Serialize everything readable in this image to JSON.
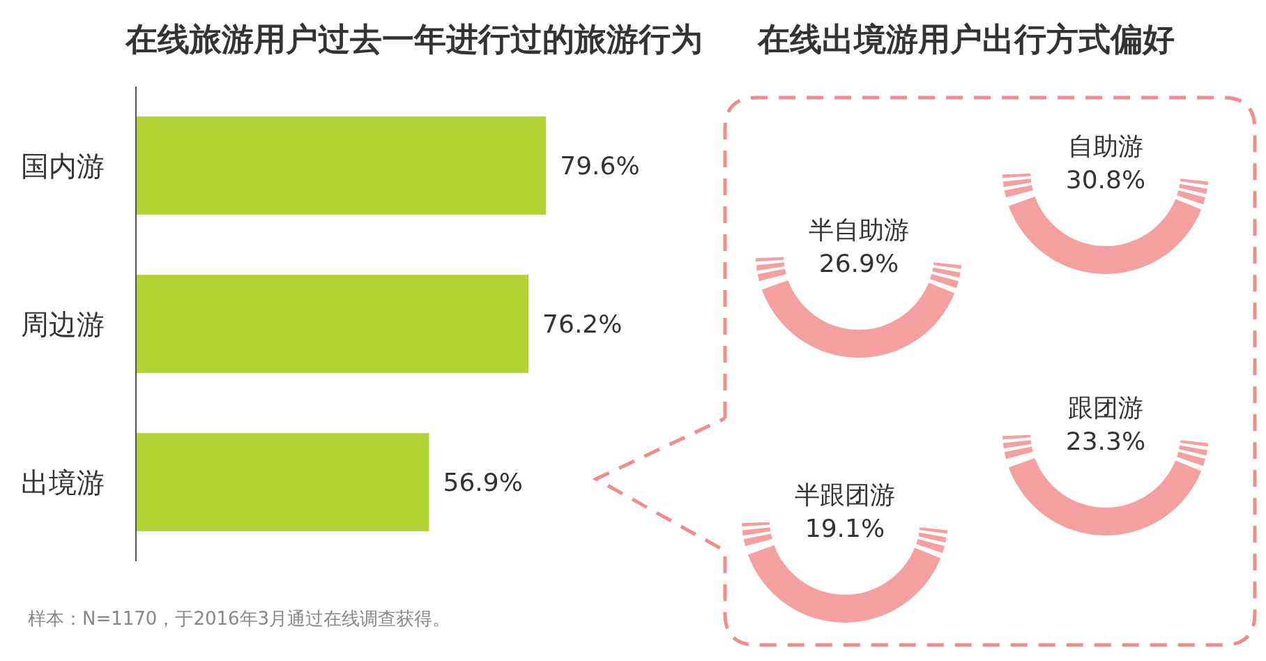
{
  "chart_data": [
    {
      "type": "bar",
      "orientation": "horizontal",
      "title": "在线旅游用户过去一年进行过的旅游行为",
      "categories": [
        "国内游",
        "周边游",
        "出境游"
      ],
      "values": [
        79.6,
        76.2,
        56.9
      ],
      "color": "#b3d334",
      "value_labels": [
        "79.6%",
        "76.2%",
        "56.9%"
      ],
      "tick_labels": "y",
      "annotations": [
        "样本：N=1170，于2016年3月通过在线调查获得。"
      ]
    },
    {
      "type": "other",
      "title": "在线出境游用户出行方式偏好",
      "categories": [
        "自助游",
        "半自助游",
        "跟团游",
        "半跟团游"
      ],
      "color": "#f4a0a0",
      "value_labels": [
        "30.8%",
        "26.9%",
        "23.3%",
        "19.1%"
      ]
    }
  ]
}
